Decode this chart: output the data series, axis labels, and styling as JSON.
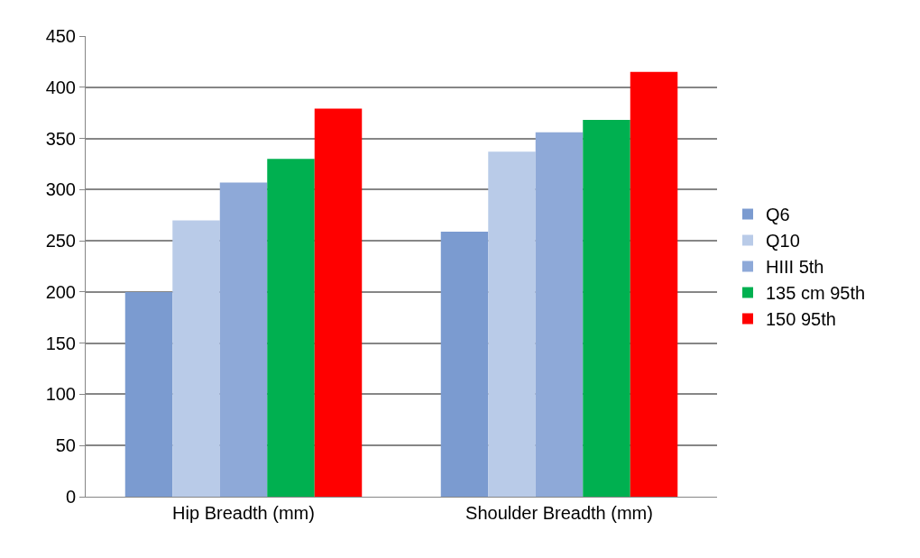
{
  "chart_data": {
    "type": "bar",
    "categories": [
      "Hip Breadth (mm)",
      "Shoulder Breadth (mm)"
    ],
    "series": [
      {
        "name": "Q6",
        "color": "#7b9bd0",
        "values": [
          200,
          259
        ]
      },
      {
        "name": "Q10",
        "color": "#b9cbe8",
        "values": [
          270,
          337
        ]
      },
      {
        "name": "HIII 5th",
        "color": "#8ea9d8",
        "values": [
          307,
          356
        ]
      },
      {
        "name": "135 cm 95th",
        "color": "#00b050",
        "values": [
          330,
          368
        ]
      },
      {
        "name": "150 95th",
        "color": "#ff0000",
        "values": [
          379,
          415
        ]
      }
    ],
    "ylim": [
      0,
      450
    ],
    "yticks": [
      0,
      50,
      100,
      150,
      200,
      250,
      300,
      350,
      400,
      450
    ],
    "grid": "y",
    "legend": "right"
  }
}
